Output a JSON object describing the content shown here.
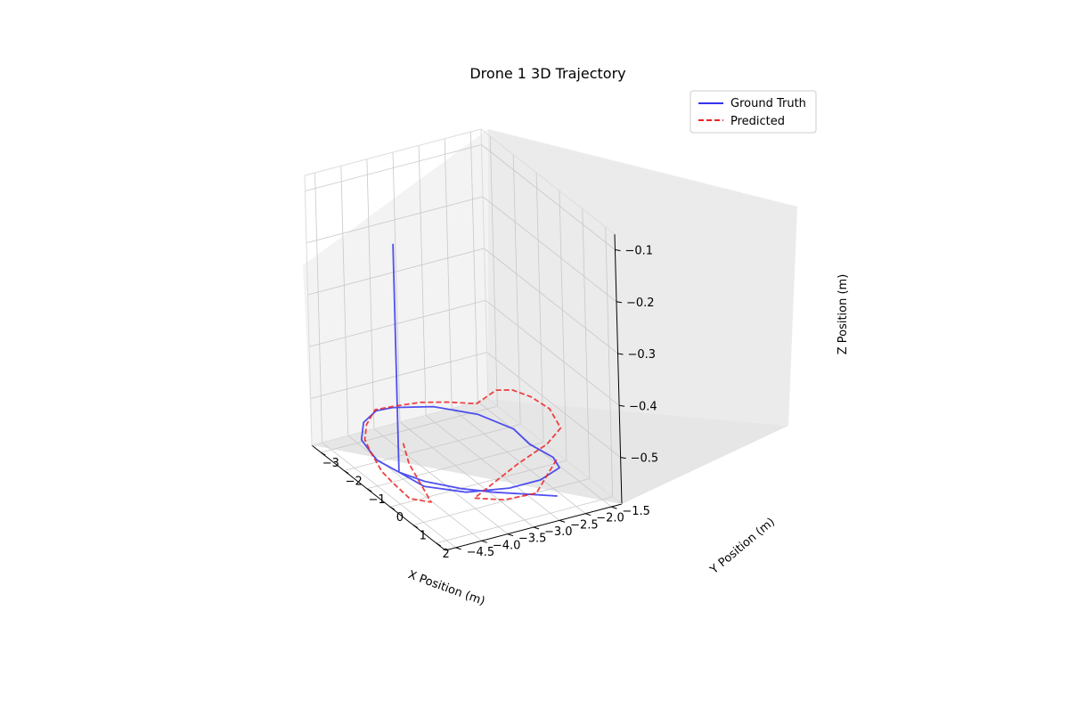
{
  "chart_data": {
    "type": "line",
    "projection": "3d",
    "title": "Drone 1 3D Trajectory",
    "xlabel": "X Position (m)",
    "ylabel": "Y Position (m)",
    "zlabel": "Z Position (m)",
    "xlim": [
      -3.4,
      2.4
    ],
    "ylim": [
      -4.7,
      -1.3
    ],
    "zlim": [
      -0.59,
      -0.07
    ],
    "x_ticks": [
      {
        "value": -3,
        "label": "−3"
      },
      {
        "value": -2,
        "label": "−2"
      },
      {
        "value": -1,
        "label": "−1"
      },
      {
        "value": 0,
        "label": "0"
      },
      {
        "value": 1,
        "label": "1"
      },
      {
        "value": 2,
        "label": "2"
      }
    ],
    "y_ticks": [
      {
        "value": -4.5,
        "label": "−4.5"
      },
      {
        "value": -4.0,
        "label": "−4.0"
      },
      {
        "value": -3.5,
        "label": "−3.5"
      },
      {
        "value": -3.0,
        "label": "−3.0"
      },
      {
        "value": -2.5,
        "label": "−2.5"
      },
      {
        "value": -2.0,
        "label": "−2.0"
      },
      {
        "value": -1.5,
        "label": "−1.5"
      }
    ],
    "z_ticks": [
      {
        "value": -0.5,
        "label": "−0.5"
      },
      {
        "value": -0.4,
        "label": "−0.4"
      },
      {
        "value": -0.3,
        "label": "−0.3"
      },
      {
        "value": -0.2,
        "label": "−0.2"
      },
      {
        "value": -0.1,
        "label": "−0.1"
      }
    ],
    "grid": true,
    "legend": {
      "position": "top-right"
    },
    "series": [
      {
        "name": "Ground Truth",
        "color": "#3333ee",
        "linestyle": "solid",
        "points": [
          [
            -0.26,
            -4.4,
            -0.1
          ],
          [
            -0.26,
            -4.4,
            -0.54
          ],
          [
            0.6,
            -4.3,
            -0.54
          ],
          [
            1.3,
            -3.8,
            -0.54
          ],
          [
            1.6,
            -3.1,
            -0.54
          ],
          [
            1.6,
            -2.5,
            -0.54
          ],
          [
            1.3,
            -2.0,
            -0.54
          ],
          [
            0.8,
            -1.9,
            -0.54
          ],
          [
            0.0,
            -2.0,
            -0.54
          ],
          [
            -0.8,
            -1.95,
            -0.54
          ],
          [
            -1.8,
            -2.2,
            -0.54
          ],
          [
            -2.6,
            -2.7,
            -0.54
          ],
          [
            -3.0,
            -3.3,
            -0.54
          ],
          [
            -3.05,
            -3.6,
            -0.54
          ],
          [
            -2.7,
            -4.0,
            -0.54
          ],
          [
            -2.0,
            -4.35,
            -0.54
          ],
          [
            -1.0,
            -4.5,
            -0.54
          ],
          [
            -0.26,
            -4.4,
            -0.54
          ],
          [
            0.4,
            -4.2,
            -0.54
          ],
          [
            1.1,
            -3.8,
            -0.54
          ],
          [
            1.6,
            -3.4,
            -0.54
          ],
          [
            2.1,
            -2.9,
            -0.54
          ],
          [
            2.45,
            -2.55,
            -0.54
          ]
        ]
      },
      {
        "name": "Predicted",
        "color": "#ee2222",
        "linestyle": "dashed",
        "points": [
          [
            2.45,
            -2.55,
            -0.47
          ],
          [
            2.1,
            -2.8,
            -0.54
          ],
          [
            1.6,
            -3.2,
            -0.56
          ],
          [
            1.2,
            -3.6,
            -0.56
          ],
          [
            1.55,
            -2.9,
            -0.5
          ],
          [
            1.7,
            -2.4,
            -0.47
          ],
          [
            1.4,
            -2.0,
            -0.46
          ],
          [
            0.7,
            -1.9,
            -0.45
          ],
          [
            0.0,
            -1.95,
            -0.45
          ],
          [
            -0.7,
            -2.0,
            -0.46
          ],
          [
            -1.3,
            -2.05,
            -0.48
          ],
          [
            -1.6,
            -2.3,
            -0.51
          ],
          [
            -2.2,
            -2.6,
            -0.52
          ],
          [
            -2.7,
            -2.9,
            -0.53
          ],
          [
            -3.05,
            -3.3,
            -0.54
          ],
          [
            -3.1,
            -3.6,
            -0.54
          ],
          [
            -2.8,
            -3.9,
            -0.55
          ],
          [
            -2.2,
            -4.2,
            -0.55
          ],
          [
            -1.6,
            -4.35,
            -0.55
          ],
          [
            -0.9,
            -4.45,
            -0.56
          ],
          [
            -0.3,
            -4.5,
            -0.56
          ],
          [
            0.3,
            -4.45,
            -0.57
          ],
          [
            0.9,
            -4.3,
            -0.56
          ],
          [
            0.2,
            -4.2,
            -0.55
          ],
          [
            -0.5,
            -4.1,
            -0.54
          ],
          [
            -1.2,
            -3.9,
            -0.53
          ]
        ]
      }
    ]
  }
}
